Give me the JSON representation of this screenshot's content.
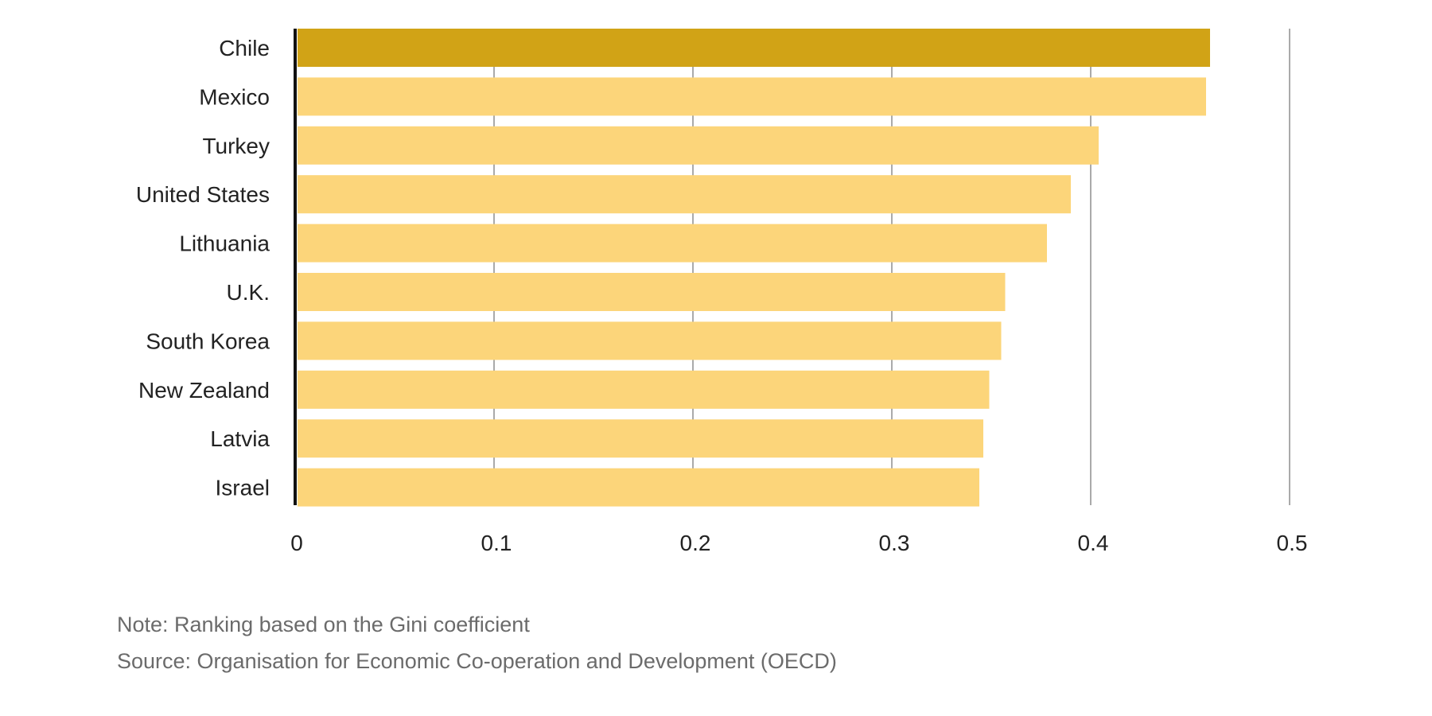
{
  "chart_data": {
    "type": "bar",
    "orientation": "horizontal",
    "categories": [
      "Chile",
      "Mexico",
      "Turkey",
      "United States",
      "Lithuania",
      "U.K.",
      "South Korea",
      "New Zealand",
      "Latvia",
      "Israel"
    ],
    "values": [
      0.46,
      0.458,
      0.404,
      0.39,
      0.378,
      0.357,
      0.355,
      0.349,
      0.346,
      0.344
    ],
    "highlight": "Chile",
    "title": "",
    "xlabel": "",
    "ylabel": "",
    "xlim": [
      0,
      0.5
    ],
    "xticks": [
      0,
      0.1,
      0.2,
      0.3,
      0.4,
      0.5
    ],
    "xtick_labels": [
      "0",
      "0.1",
      "0.2",
      "0.3",
      "0.4",
      "0.5"
    ],
    "grid": "vertical",
    "legend": "none"
  },
  "colors": {
    "bar": "#fcd57a",
    "highlight_bar": "#d1a316",
    "gridline": "#aaaaaa",
    "axis": "#111111",
    "label_text": "#222222",
    "footnote_text": "#6b6b6b"
  },
  "footnotes": {
    "note": "Note: Ranking based on the Gini coefficient",
    "source": "Source: Organisation for Economic Co-operation and Development (OECD)"
  }
}
